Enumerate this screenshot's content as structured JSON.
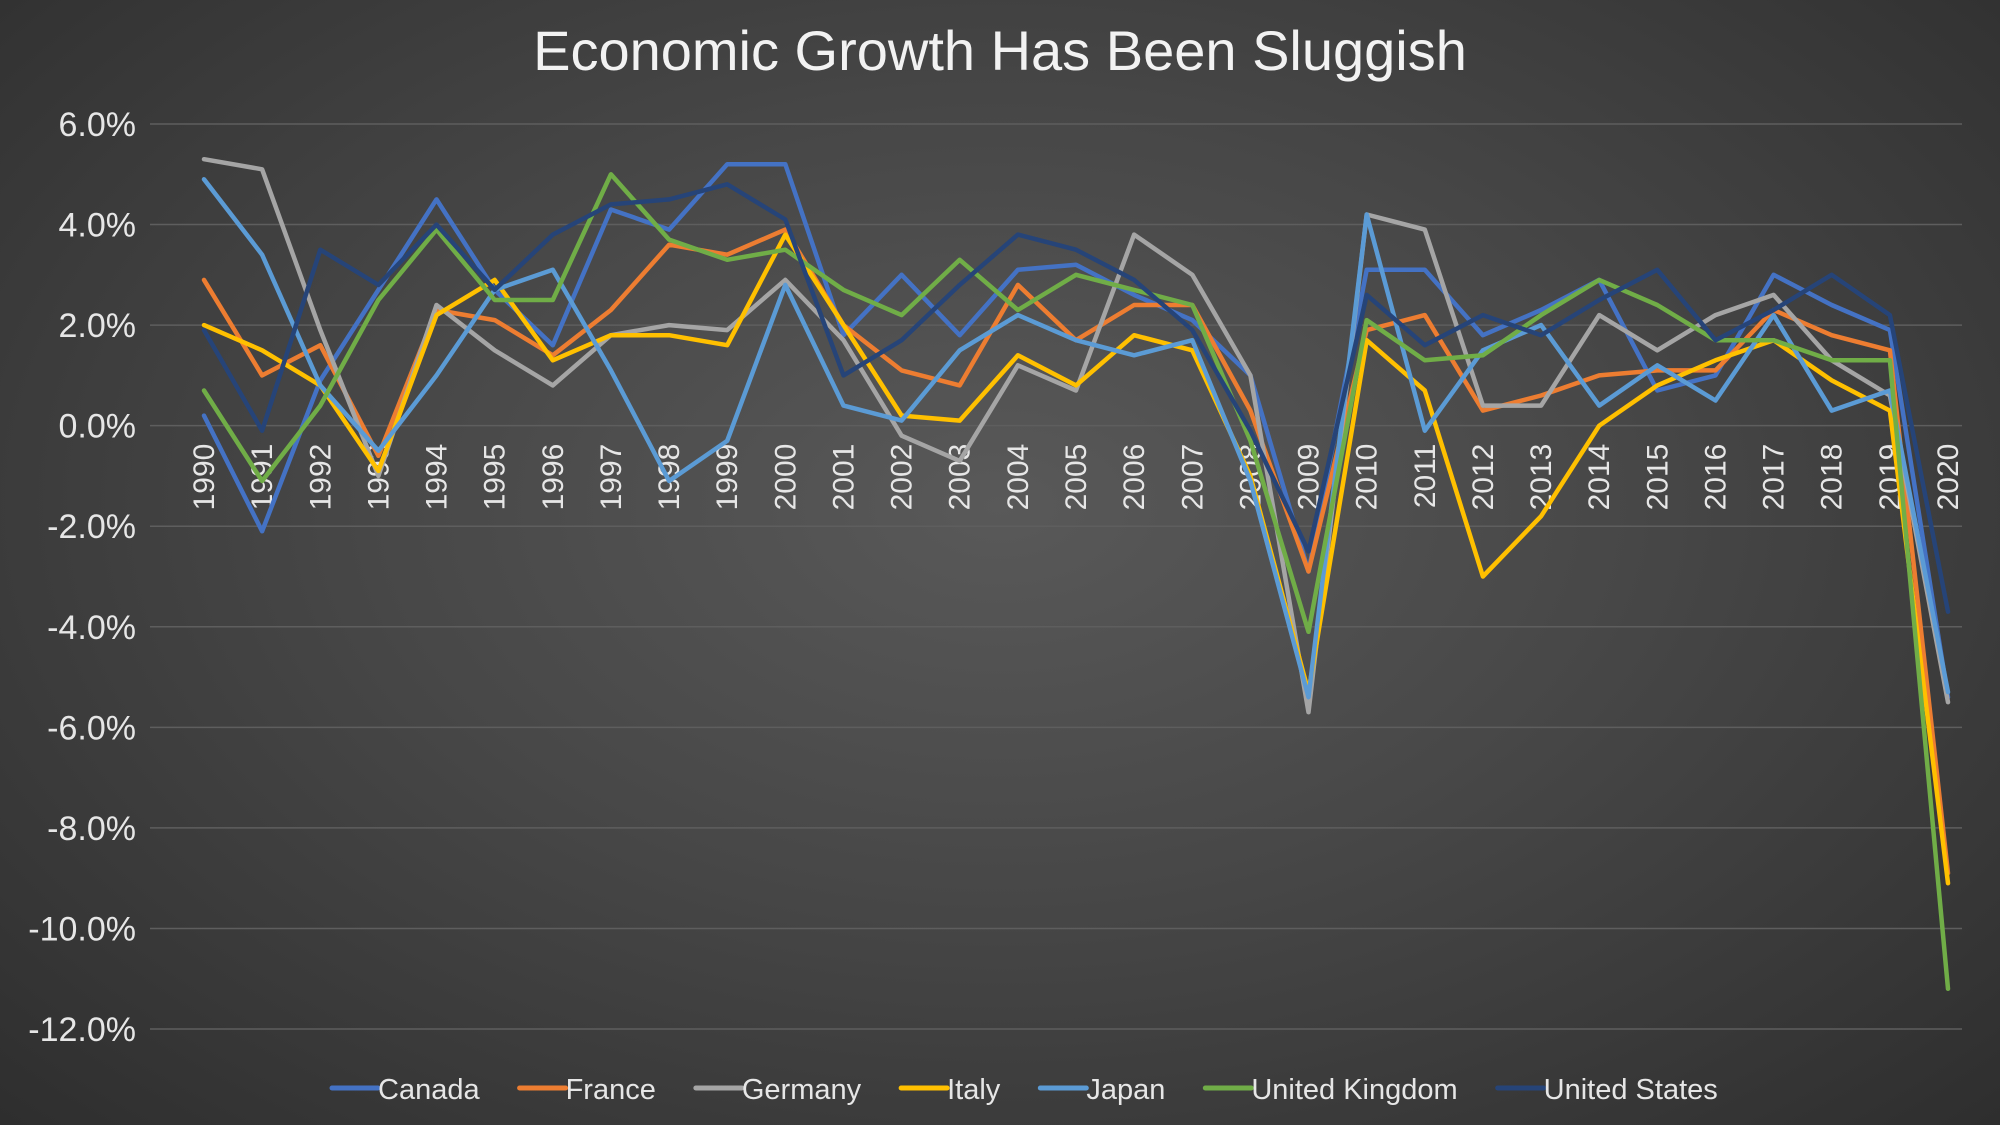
{
  "chart_data": {
    "type": "line",
    "title": "Economic Growth Has Been Sluggish",
    "xlabel": "",
    "ylabel": "",
    "ylim": [
      -12,
      6
    ],
    "y_tick_step": 2,
    "y_tick_format": "percent-1-decimal",
    "grid": "horizontal",
    "legend_position": "bottom",
    "categories": [
      1990,
      1991,
      1992,
      1993,
      1994,
      1995,
      1996,
      1997,
      1998,
      1999,
      2000,
      2001,
      2002,
      2003,
      2004,
      2005,
      2006,
      2007,
      2008,
      2009,
      2010,
      2011,
      2012,
      2013,
      2014,
      2015,
      2016,
      2017,
      2018,
      2019,
      2020
    ],
    "series": [
      {
        "name": "Canada",
        "color": "#4472c4",
        "values": [
          0.2,
          -2.1,
          0.9,
          2.7,
          4.5,
          2.7,
          1.6,
          4.3,
          3.9,
          5.2,
          5.2,
          1.8,
          3.0,
          1.8,
          3.1,
          3.2,
          2.6,
          2.1,
          1.0,
          -2.9,
          3.1,
          3.1,
          1.8,
          2.3,
          2.9,
          0.7,
          1.0,
          3.0,
          2.4,
          1.9,
          -5.4
        ]
      },
      {
        "name": "France",
        "color": "#ed7d31",
        "values": [
          2.9,
          1.0,
          1.6,
          -0.6,
          2.3,
          2.1,
          1.4,
          2.3,
          3.6,
          3.4,
          3.9,
          2.0,
          1.1,
          0.8,
          2.8,
          1.7,
          2.4,
          2.4,
          0.3,
          -2.9,
          1.9,
          2.2,
          0.3,
          0.6,
          1.0,
          1.1,
          1.1,
          2.3,
          1.8,
          1.5,
          -8.9
        ]
      },
      {
        "name": "Germany",
        "color": "#a5a5a5",
        "values": [
          5.3,
          5.1,
          1.9,
          -1.0,
          2.4,
          1.5,
          0.8,
          1.8,
          2.0,
          1.9,
          2.9,
          1.7,
          -0.2,
          -0.7,
          1.2,
          0.7,
          3.8,
          3.0,
          1.0,
          -5.7,
          4.2,
          3.9,
          0.4,
          0.4,
          2.2,
          1.5,
          2.2,
          2.6,
          1.3,
          0.6,
          -5.5
        ]
      },
      {
        "name": "Italy",
        "color": "#ffc000",
        "values": [
          2.0,
          1.5,
          0.8,
          -0.9,
          2.2,
          2.9,
          1.3,
          1.8,
          1.8,
          1.6,
          3.8,
          2.0,
          0.2,
          0.1,
          1.4,
          0.8,
          1.8,
          1.5,
          -1.0,
          -5.3,
          1.7,
          0.7,
          -3.0,
          -1.8,
          0.0,
          0.8,
          1.3,
          1.7,
          0.9,
          0.3,
          -9.1
        ]
      },
      {
        "name": "Japan",
        "color": "#5b9bd5",
        "values": [
          4.9,
          3.4,
          0.8,
          -0.5,
          1.0,
          2.7,
          3.1,
          1.1,
          -1.1,
          -0.3,
          2.8,
          0.4,
          0.1,
          1.5,
          2.2,
          1.7,
          1.4,
          1.7,
          -1.1,
          -5.4,
          4.2,
          -0.1,
          1.5,
          2.0,
          0.4,
          1.2,
          0.5,
          2.2,
          0.3,
          0.7,
          -5.3
        ]
      },
      {
        "name": "United Kingdom",
        "color": "#70ad47",
        "values": [
          0.7,
          -1.1,
          0.4,
          2.5,
          3.9,
          2.5,
          2.5,
          5.0,
          3.7,
          3.3,
          3.5,
          2.7,
          2.2,
          3.3,
          2.3,
          3.0,
          2.7,
          2.4,
          -0.3,
          -4.1,
          2.1,
          1.3,
          1.4,
          2.2,
          2.9,
          2.4,
          1.7,
          1.7,
          1.3,
          1.3,
          -11.2
        ]
      },
      {
        "name": "United States",
        "color": "#264478",
        "values": [
          1.9,
          -0.1,
          3.5,
          2.8,
          4.0,
          2.7,
          3.8,
          4.4,
          4.5,
          4.8,
          4.1,
          1.0,
          1.7,
          2.8,
          3.8,
          3.5,
          2.9,
          1.9,
          -0.1,
          -2.5,
          2.6,
          1.6,
          2.2,
          1.8,
          2.5,
          3.1,
          1.7,
          2.3,
          3.0,
          2.2,
          -3.7
        ]
      }
    ]
  }
}
